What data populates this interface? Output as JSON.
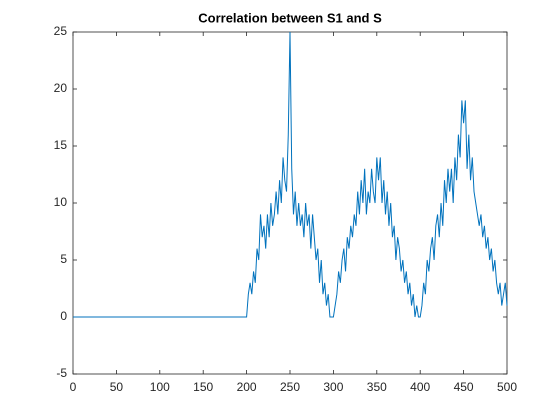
{
  "chart_data": {
    "type": "line",
    "title": "Correlation between S1 and S",
    "x": [
      0,
      200,
      202,
      204,
      206,
      208,
      210,
      212,
      214,
      216,
      218,
      220,
      222,
      224,
      226,
      228,
      230,
      232,
      234,
      236,
      238,
      240,
      242,
      244,
      246,
      248,
      250,
      252,
      254,
      256,
      258,
      260,
      262,
      264,
      266,
      268,
      270,
      272,
      274,
      276,
      278,
      280,
      282,
      284,
      286,
      288,
      290,
      292,
      294,
      296,
      298,
      300,
      302,
      304,
      306,
      308,
      310,
      312,
      314,
      316,
      318,
      320,
      322,
      324,
      326,
      328,
      330,
      332,
      334,
      336,
      338,
      340,
      342,
      344,
      346,
      348,
      350,
      352,
      354,
      356,
      358,
      360,
      362,
      364,
      366,
      368,
      370,
      372,
      374,
      376,
      378,
      380,
      382,
      384,
      386,
      388,
      390,
      392,
      394,
      396,
      398,
      400,
      402,
      404,
      406,
      408,
      410,
      412,
      414,
      416,
      418,
      420,
      422,
      424,
      426,
      428,
      430,
      432,
      434,
      436,
      438,
      440,
      442,
      444,
      446,
      448,
      450,
      452,
      454,
      456,
      458,
      460,
      462,
      464,
      466,
      468,
      470,
      472,
      474,
      476,
      478,
      480,
      482,
      484,
      486,
      488,
      490,
      492,
      494,
      496,
      498,
      500
    ],
    "series": [
      {
        "color": "#0072bd",
        "values": [
          0,
          0,
          2,
          3,
          2,
          4,
          3,
          6,
          5,
          9,
          7,
          8,
          6,
          9,
          7,
          10,
          8,
          9,
          11,
          9,
          12,
          10,
          14,
          12,
          11,
          16,
          25,
          13,
          9,
          11,
          8,
          10,
          8,
          9,
          7,
          10,
          8,
          9,
          6,
          9,
          7,
          5,
          6,
          3,
          5,
          2,
          3,
          1,
          2,
          0,
          0,
          0,
          1,
          2,
          4,
          3,
          5,
          6,
          4,
          7,
          6,
          8,
          7,
          9,
          8,
          11,
          9,
          12,
          10,
          13,
          9,
          11,
          10,
          13,
          11,
          10,
          14,
          12,
          14,
          10,
          12,
          9,
          11,
          8,
          10,
          7,
          8,
          5,
          7,
          6,
          4,
          5,
          3,
          4,
          2,
          3,
          1,
          2,
          0,
          1,
          0,
          0,
          1,
          3,
          2,
          5,
          4,
          6,
          7,
          5,
          8,
          9,
          7,
          10,
          8,
          12,
          10,
          13,
          11,
          13,
          10,
          14,
          12,
          16,
          14,
          19,
          17,
          19,
          13,
          16,
          12,
          14,
          11,
          10,
          9,
          8,
          9,
          7,
          8,
          6,
          7,
          5,
          6,
          4,
          5,
          3,
          2,
          3,
          1,
          2,
          3,
          1
        ]
      }
    ],
    "xlim": [
      0,
      500
    ],
    "xticks": [
      0,
      50,
      100,
      150,
      200,
      250,
      300,
      350,
      400,
      450,
      500
    ],
    "ylim": [
      -5,
      25
    ],
    "yticks": [
      -5,
      0,
      5,
      10,
      15,
      20,
      25
    ]
  }
}
